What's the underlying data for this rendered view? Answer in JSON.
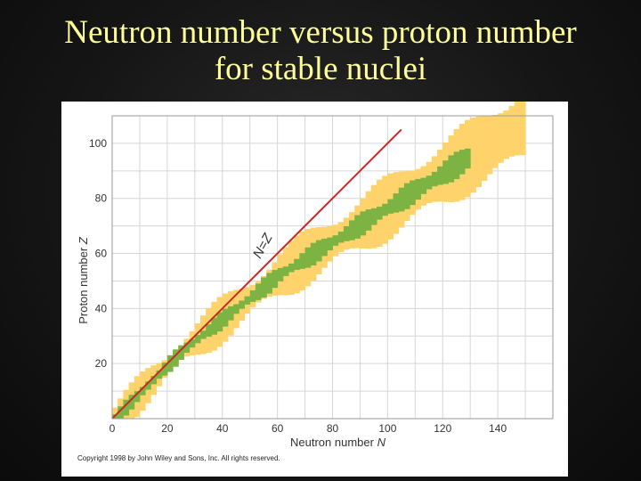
{
  "slide": {
    "title_line1": "Neutron number versus proton number",
    "title_line2": "for stable nuclei"
  },
  "figure": {
    "x_axis_label": "Neutron number",
    "x_axis_symbol": "N",
    "y_axis_label": "Proton number",
    "y_axis_symbol": "Z",
    "x_ticks": [
      "0",
      "20",
      "40",
      "60",
      "80",
      "100",
      "120",
      "140"
    ],
    "y_ticks": [
      "20",
      "40",
      "60",
      "80",
      "100"
    ],
    "line_label": "N=Z",
    "copyright": "Copyright 1998 by John Wiley and Sons, Inc. All rights reserved.",
    "colors": {
      "band_outer": "#ffd36b",
      "band_inner": "#7cb342",
      "line": "#c62828",
      "grid": "#d6d6d6",
      "title": "#ffff99"
    }
  }
}
